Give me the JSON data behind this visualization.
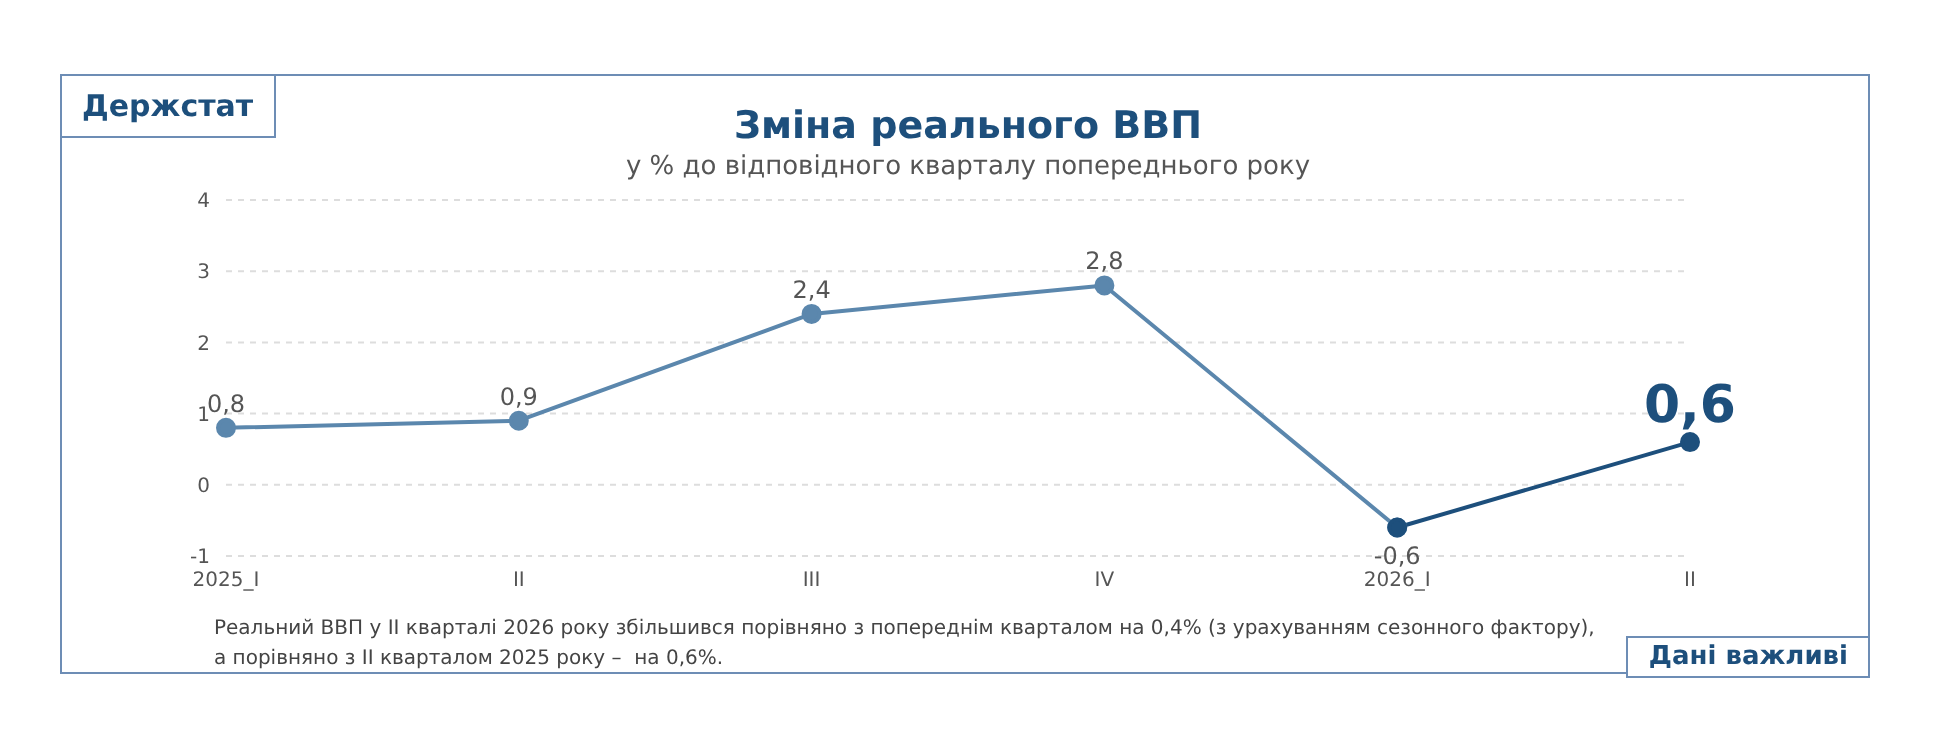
{
  "chart_data": {
    "type": "line",
    "title": "Зміна реального ВВП",
    "subtitle": "у % до відповідного кварталу попереднього року",
    "categories": [
      "2025_I",
      "II",
      "III",
      "IV",
      "2026_I",
      "II"
    ],
    "series": [
      {
        "color": "#5b87ad",
        "values": [
          0.8,
          0.9,
          2.4,
          2.8,
          -0.6,
          null
        ],
        "value_labels": [
          "0,8",
          "0,9",
          "2,4",
          "2,8",
          "-0,6",
          null
        ]
      },
      {
        "color": "#1d4f7c",
        "values": [
          null,
          null,
          null,
          null,
          -0.6,
          0.6
        ],
        "value_labels": [
          null,
          null,
          null,
          null,
          null,
          "0,6"
        ]
      }
    ],
    "ylim": [
      -1,
      4
    ],
    "yticks": [
      -1,
      0,
      1,
      2,
      3,
      4
    ],
    "grid": "y",
    "marker": "circle",
    "line_style": "solid",
    "annotations": [
      "Держстат",
      "Реальний ВВП у II кварталі 2026 року збільшився порівняно з попереднім кварталом на 0,4% (з урахуванням сезонного фактору),\nа порівняно з II кварталом 2025 року –  на 0,6%.",
      "Дані важливі"
    ]
  }
}
